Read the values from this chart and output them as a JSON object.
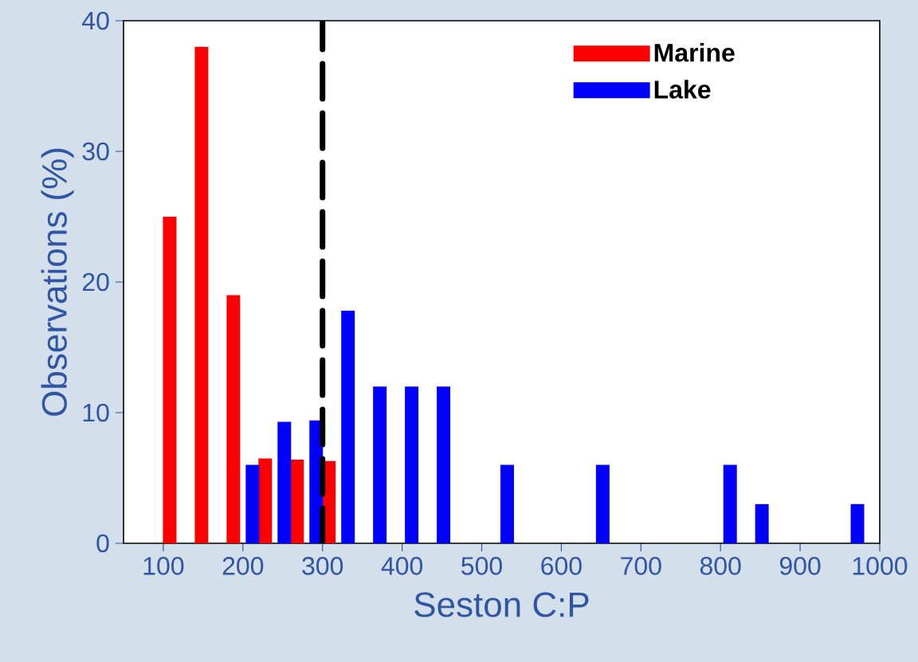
{
  "chart_data": {
    "type": "bar",
    "xlabel": "Seston C:P",
    "ylabel": "Observations (%)",
    "xlim": [
      50,
      1000
    ],
    "ylim": [
      0,
      40
    ],
    "xticks": [
      100,
      200,
      300,
      400,
      500,
      600,
      700,
      800,
      900,
      1000
    ],
    "yticks": [
      0,
      10,
      20,
      30,
      40
    ],
    "legend": "top right",
    "series": [
      {
        "name": "Marine",
        "color": "#ff0000",
        "x": [
          108,
          148,
          188,
          228,
          268,
          308
        ],
        "values": [
          25,
          38,
          19,
          6.5,
          6.4,
          6.3
        ]
      },
      {
        "name": "Lake",
        "color": "#0000ff",
        "x": [
          212,
          252,
          292,
          332,
          372,
          412,
          452,
          532,
          652,
          812,
          852,
          972
        ],
        "values": [
          6,
          9.3,
          9.4,
          17.8,
          12,
          12,
          12,
          6,
          6,
          6,
          3,
          3
        ]
      }
    ],
    "ref_lines": [
      {
        "axis": "x",
        "value": 300,
        "color": "#000000",
        "line_style": "dashed"
      }
    ]
  }
}
